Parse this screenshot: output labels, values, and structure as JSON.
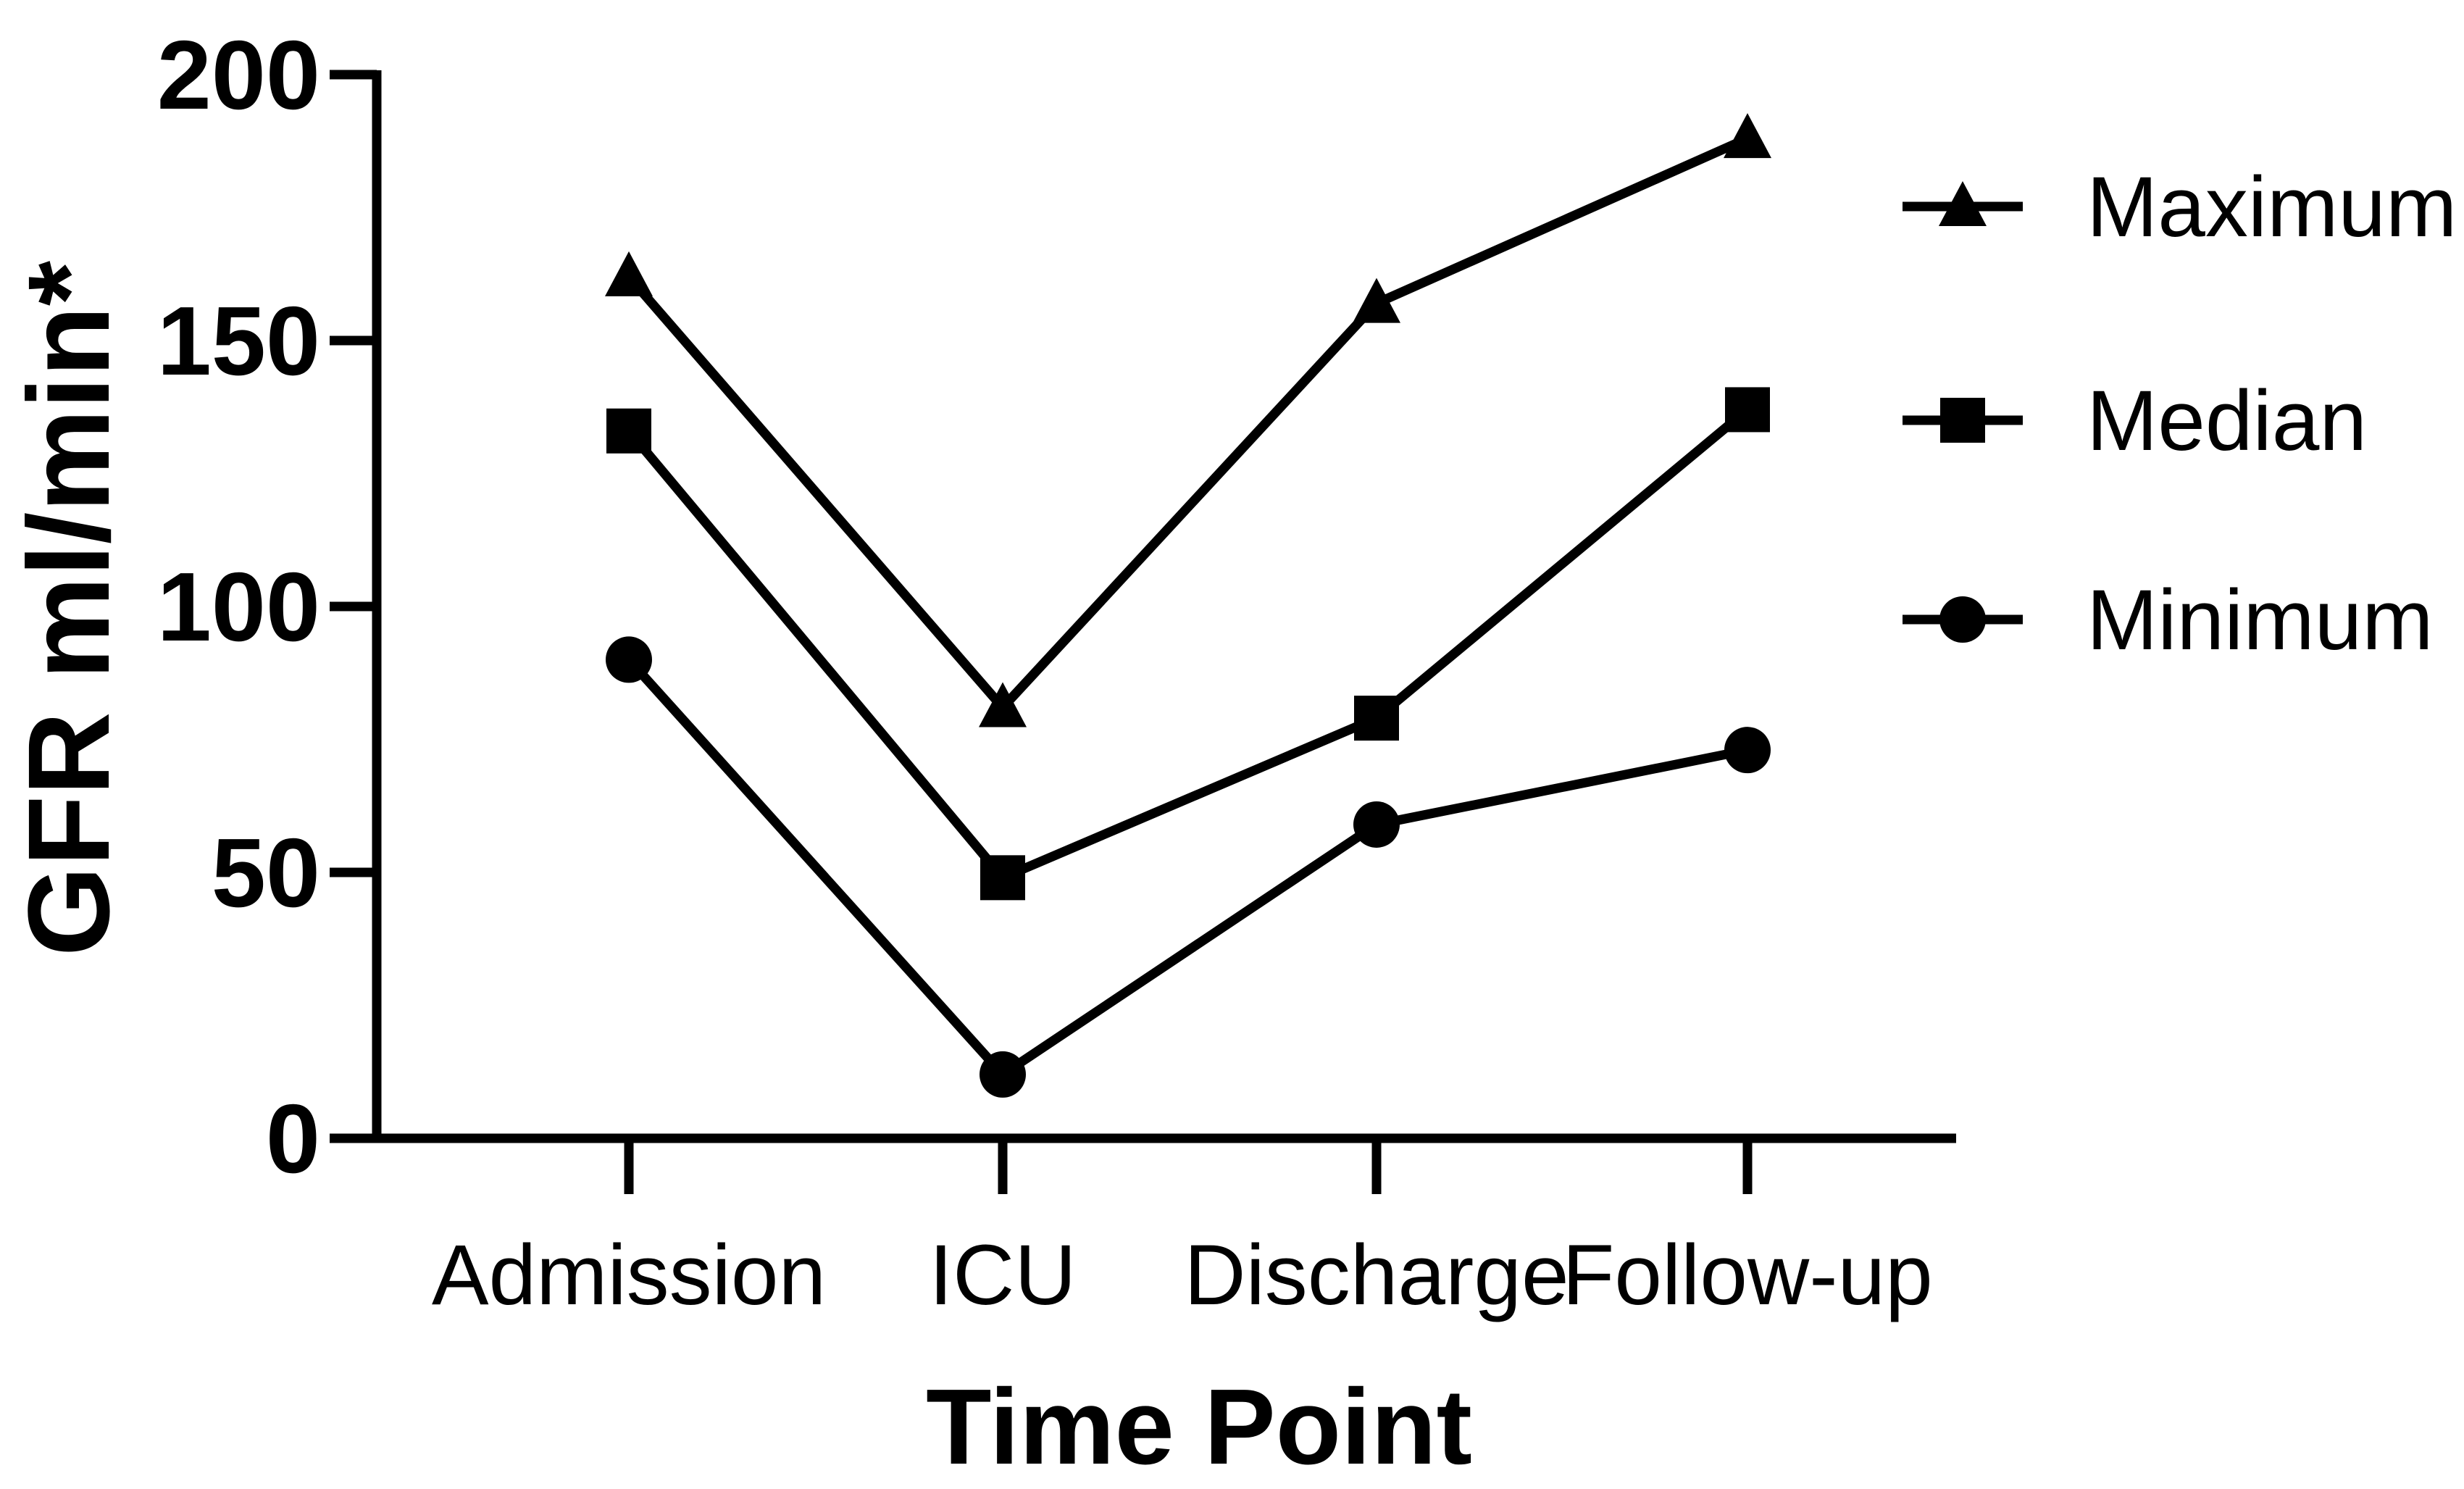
{
  "chart_data": {
    "type": "line",
    "title": "",
    "categories": [
      "Admission",
      "ICU",
      "Discharge",
      "Follow-up"
    ],
    "series": [
      {
        "name": "Maximum",
        "marker": "triangle",
        "values": [
          162,
          81,
          157,
          188
        ]
      },
      {
        "name": "Median",
        "marker": "square",
        "values": [
          133,
          49,
          79,
          137
        ]
      },
      {
        "name": "Minimum",
        "marker": "circle",
        "values": [
          90,
          12,
          59,
          73
        ]
      }
    ],
    "xlabel": "Time Point",
    "ylabel": "GFR ml/min*",
    "ylim": [
      0,
      200
    ],
    "yticks": [
      0,
      50,
      100,
      150,
      200
    ],
    "legend_position": "right",
    "grid": false,
    "line_color": "#000000",
    "background": "#ffffff"
  }
}
